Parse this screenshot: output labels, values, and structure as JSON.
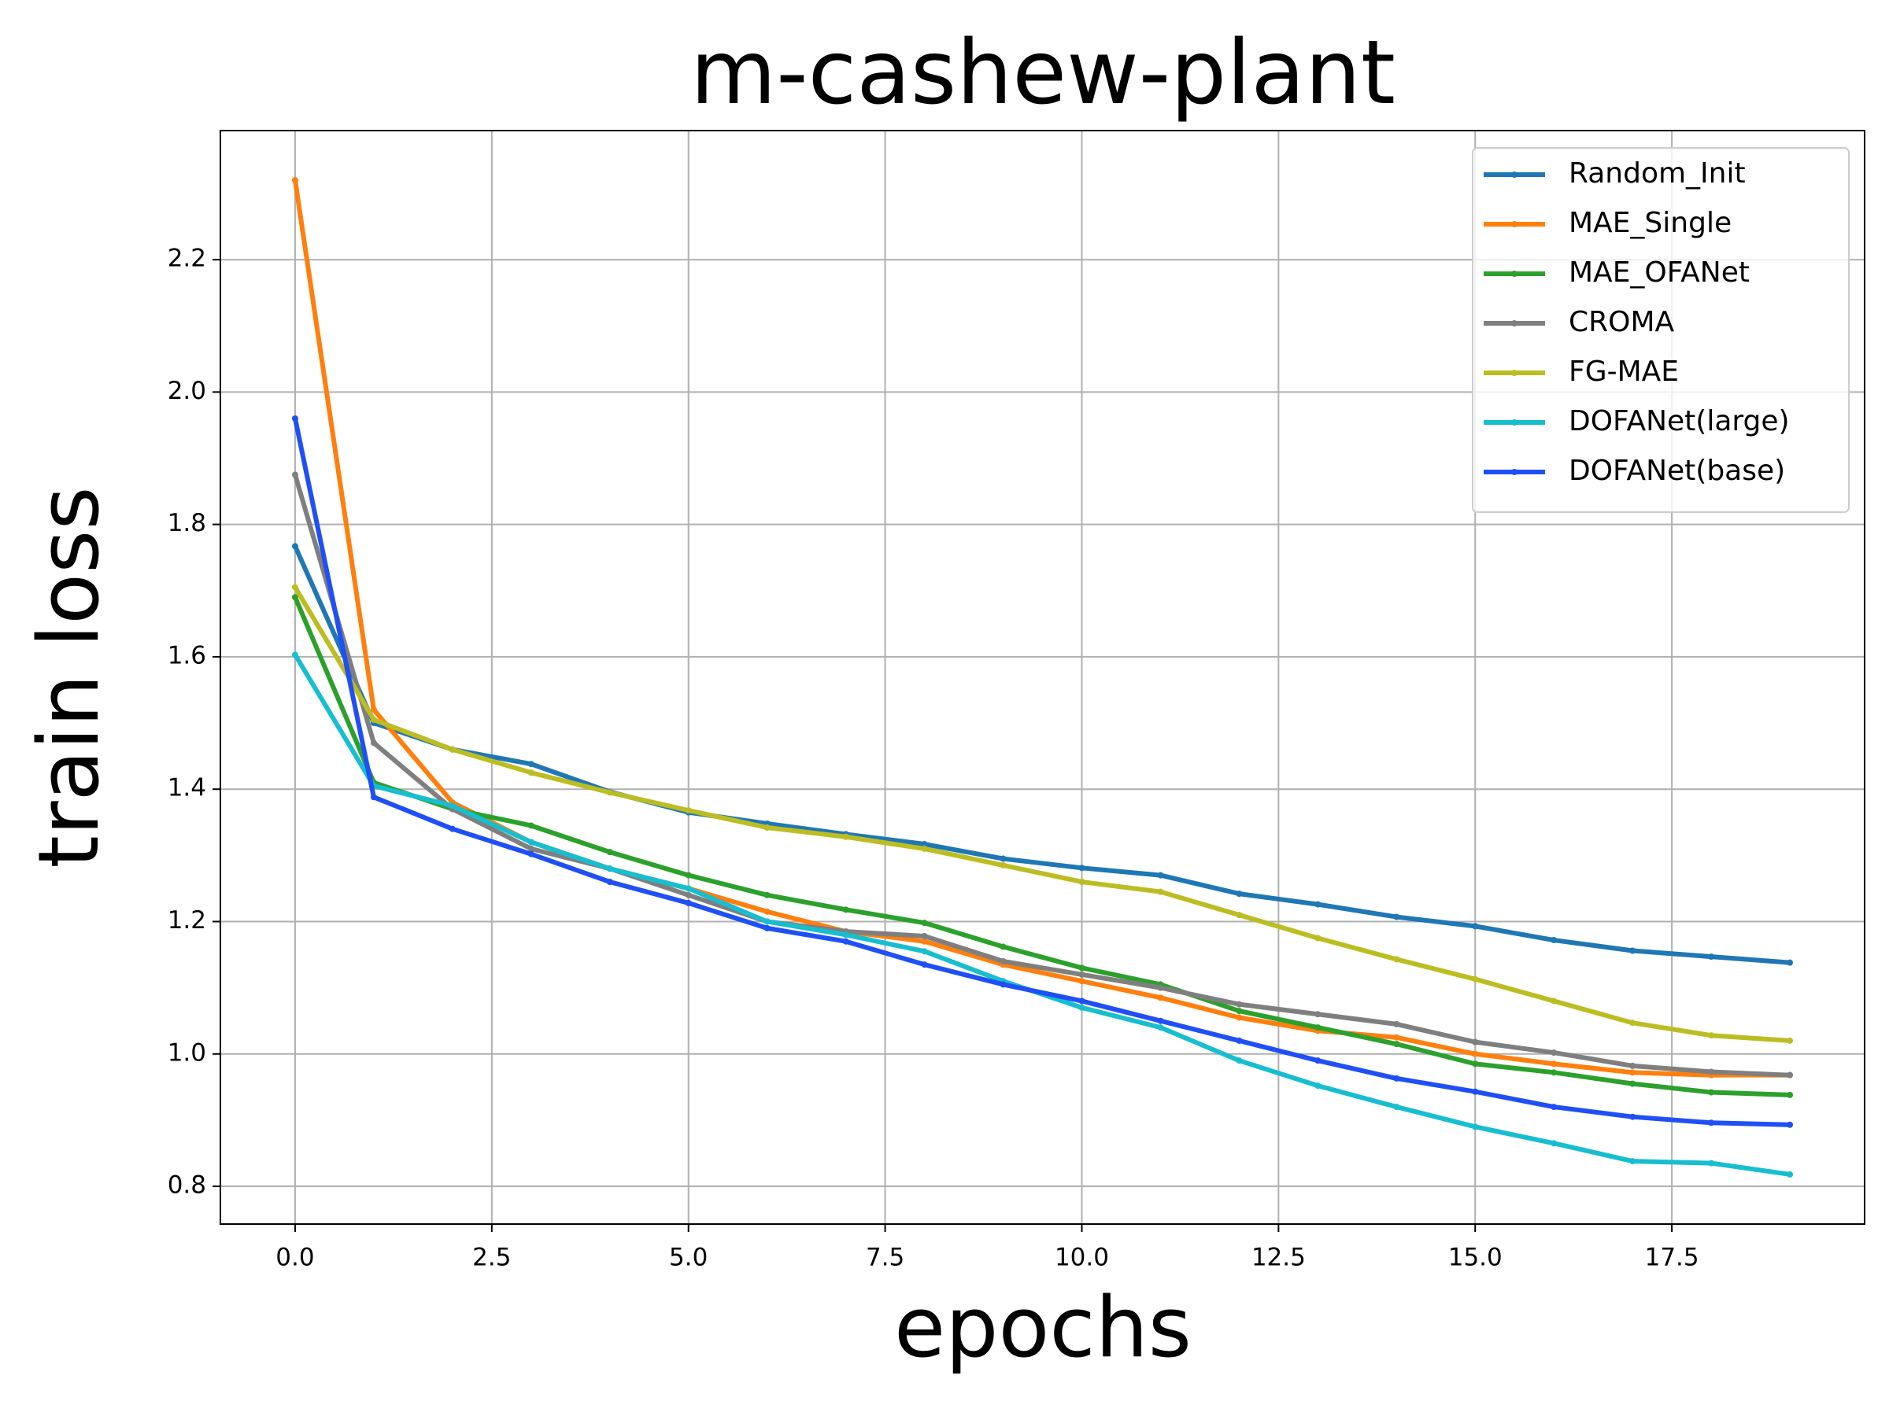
{
  "chart_data": {
    "type": "line",
    "title": "m-cashew-plant",
    "xlabel": "epochs",
    "ylabel": "train loss",
    "x": [
      0,
      1,
      2,
      3,
      4,
      5,
      6,
      7,
      8,
      9,
      10,
      11,
      12,
      13,
      14,
      15,
      16,
      17,
      18,
      19
    ],
    "series": [
      {
        "name": "Random_Init",
        "color": "#1f77b4",
        "values": [
          1.767,
          1.5,
          1.46,
          1.438,
          1.396,
          1.365,
          1.348,
          1.332,
          1.317,
          1.295,
          1.281,
          1.27,
          1.242,
          1.226,
          1.207,
          1.193,
          1.172,
          1.156,
          1.147,
          1.138
        ]
      },
      {
        "name": "MAE_Single",
        "color": "#ff7f0e",
        "values": [
          2.32,
          1.52,
          1.38,
          1.32,
          1.28,
          1.25,
          1.215,
          1.185,
          1.17,
          1.135,
          1.11,
          1.085,
          1.055,
          1.035,
          1.025,
          1.0,
          0.985,
          0.972,
          0.968,
          0.968
        ]
      },
      {
        "name": "MAE_OFANet",
        "color": "#2ca02c",
        "values": [
          1.69,
          1.41,
          1.37,
          1.345,
          1.305,
          1.27,
          1.24,
          1.218,
          1.198,
          1.162,
          1.13,
          1.105,
          1.065,
          1.04,
          1.015,
          0.985,
          0.972,
          0.955,
          0.942,
          0.938
        ]
      },
      {
        "name": "CROMA",
        "color": "#7f7f7f",
        "values": [
          1.875,
          1.47,
          1.37,
          1.31,
          1.28,
          1.24,
          1.2,
          1.185,
          1.178,
          1.14,
          1.12,
          1.1,
          1.075,
          1.06,
          1.045,
          1.018,
          1.002,
          0.982,
          0.973,
          0.968
        ]
      },
      {
        "name": "FG-MAE",
        "color": "#bcbd22",
        "values": [
          1.705,
          1.505,
          1.46,
          1.425,
          1.395,
          1.368,
          1.342,
          1.328,
          1.31,
          1.285,
          1.26,
          1.245,
          1.21,
          1.175,
          1.143,
          1.113,
          1.08,
          1.047,
          1.028,
          1.02
        ]
      },
      {
        "name": "DOFANet(large)",
        "color": "#17becf",
        "values": [
          1.603,
          1.405,
          1.375,
          1.32,
          1.28,
          1.25,
          1.2,
          1.18,
          1.155,
          1.11,
          1.07,
          1.04,
          0.99,
          0.952,
          0.92,
          0.89,
          0.865,
          0.838,
          0.835,
          0.818
        ]
      },
      {
        "name": "DOFANet(base)",
        "color": "#1f4ff5",
        "values": [
          1.96,
          1.388,
          1.34,
          1.302,
          1.26,
          1.228,
          1.19,
          1.17,
          1.135,
          1.105,
          1.08,
          1.05,
          1.02,
          0.99,
          0.963,
          0.943,
          0.92,
          0.905,
          0.896,
          0.893
        ]
      }
    ],
    "xlim": [
      -0.95,
      19.95
    ],
    "xticks": [
      {
        "value": 0,
        "label": "0.0"
      },
      2.5,
      {
        "value": 5,
        "label": "5.0"
      },
      7.5,
      {
        "value": 10,
        "label": "10.0"
      },
      12.5,
      {
        "value": 15,
        "label": "15.0"
      },
      17.5
    ],
    "ylim": [
      0.743,
      2.395
    ],
    "yticks": [
      0.8,
      {
        "value": 1,
        "label": "1.0"
      },
      1.2,
      1.4,
      1.6,
      1.8,
      {
        "value": 2,
        "label": "2.0"
      },
      2.2
    ],
    "grid": true,
    "legend": "upper right"
  }
}
